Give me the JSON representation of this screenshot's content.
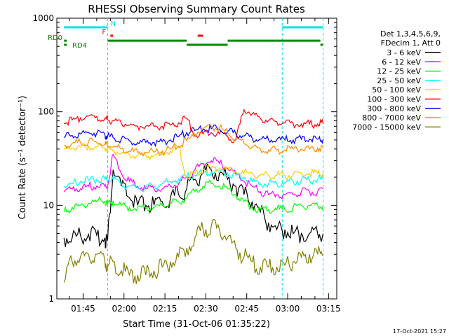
{
  "chart_data": {
    "type": "line",
    "title": "RHESSI Observing Summary Count Rates",
    "xlabel": "Start Time (31-Oct-06 01:35:22)",
    "ylabel": "Count Rate (s⁻¹ detector⁻¹)",
    "yscale": "log",
    "xlim": [
      "01:35:22",
      "03:18:00"
    ],
    "ylim": [
      1,
      1000
    ],
    "x_ticks": [
      "01:45",
      "02:00",
      "02:15",
      "02:30",
      "02:45",
      "03:00",
      "03:15"
    ],
    "y_ticks": [
      "1",
      "10",
      "100",
      "1000"
    ],
    "legend_header": [
      "Det 1,3,4,5,6,9,",
      "FDecim 1, Att 0"
    ],
    "legend_position": "right",
    "timestamp": "17-Oct-2021 15:27",
    "flags": [
      {
        "label": "N",
        "color": "#00e5ee",
        "intervals": [
          [
            "01:38",
            "01:54"
          ],
          [
            "02:58",
            "03:13"
          ]
        ],
        "level": 800
      },
      {
        "label": "F",
        "color": "#ff0000",
        "intervals": [
          [
            "01:55",
            "01:56"
          ],
          [
            "02:27",
            "02:29"
          ]
        ],
        "level": 650
      },
      {
        "label": "RD0",
        "color": "#008800",
        "intervals": [
          [
            "01:38",
            "01:39"
          ],
          [
            "01:54",
            "02:23"
          ],
          [
            "02:38",
            "03:12"
          ]
        ],
        "level": 575
      },
      {
        "label": "RD4",
        "color": "#008800",
        "intervals": [
          [
            "01:38",
            "01:39"
          ],
          [
            "02:23",
            "02:38"
          ],
          [
            "03:12",
            "03:13"
          ]
        ],
        "level": 520
      }
    ],
    "event_times": [
      "01:54",
      "02:58",
      "03:13"
    ],
    "x": [
      "01:38",
      "01:41",
      "01:44",
      "01:47",
      "01:50",
      "01:53",
      "01:54",
      "01:56",
      "01:59",
      "02:02",
      "02:05",
      "02:08",
      "02:11",
      "02:14",
      "02:17",
      "02:20",
      "02:23",
      "02:26",
      "02:29",
      "02:32",
      "02:35",
      "02:38",
      "02:41",
      "02:44",
      "02:47",
      "02:50",
      "02:53",
      "02:56",
      "02:59",
      "03:02",
      "03:05",
      "03:08",
      "03:11",
      "03:13"
    ],
    "series": [
      {
        "name": "3 - 6 keV",
        "color": "#000000",
        "values": [
          4.5,
          4.5,
          4.8,
          4.9,
          4.8,
          4.5,
          4.2,
          24,
          16,
          12,
          10,
          10,
          10,
          11,
          12,
          13,
          15,
          19,
          22,
          24,
          22,
          19,
          16,
          13,
          11,
          8.5,
          6.5,
          5.5,
          5.5,
          5.0,
          5.0,
          5.0,
          5.0,
          5.0
        ]
      },
      {
        "name": "6 - 12 keV",
        "color": "#ff00ff",
        "values": [
          14,
          15,
          15,
          16,
          16,
          16,
          16,
          35,
          22,
          18,
          16,
          15,
          15,
          15,
          16,
          17,
          20,
          24,
          28,
          30,
          28,
          25,
          22,
          18,
          16,
          14,
          13,
          13,
          13,
          13,
          14,
          14,
          14,
          15
        ]
      },
      {
        "name": "12 - 25 keV",
        "color": "#00ff00",
        "values": [
          8.5,
          9.5,
          10,
          10.5,
          11,
          11,
          10.5,
          11,
          10,
          9.5,
          9.5,
          9.5,
          9.5,
          10,
          10.5,
          11,
          12,
          14,
          16,
          17,
          16,
          15,
          13,
          11,
          9.5,
          9,
          9,
          9,
          9,
          9.5,
          10,
          10,
          10,
          10
        ]
      },
      {
        "name": "25 - 50 keV",
        "color": "#00ffff",
        "values": [
          16,
          17,
          18,
          18.5,
          19,
          19,
          18.5,
          19,
          17,
          16,
          15.5,
          15.5,
          16,
          17,
          18,
          19,
          20,
          21,
          22,
          23,
          23,
          22,
          21,
          20,
          18,
          17,
          17,
          17,
          17.5,
          18,
          18.5,
          18.5,
          19,
          19
        ]
      },
      {
        "name": "50 - 100 keV",
        "color": "#ffcc00",
        "values": [
          40,
          41,
          42,
          43,
          42,
          41,
          40,
          38,
          36,
          35,
          34,
          34,
          34,
          35,
          38,
          42,
          20,
          22,
          24,
          25,
          25,
          24,
          23,
          22,
          22,
          21,
          21,
          21,
          21,
          21,
          22,
          22,
          22,
          22
        ]
      },
      {
        "name": "100 - 300 keV",
        "color": "#ff0000",
        "values": [
          75,
          82,
          86,
          90,
          89,
          85,
          82,
          80,
          76,
          72,
          70,
          70,
          70,
          70,
          72,
          76,
          85,
          55,
          58,
          60,
          58,
          55,
          50,
          105,
          95,
          85,
          80,
          78,
          76,
          75,
          74,
          74,
          74,
          74
        ]
      },
      {
        "name": "300 - 800 keV",
        "color": "#0000ff",
        "values": [
          53,
          56,
          58,
          60,
          59,
          57,
          55,
          53,
          51,
          49,
          47,
          47,
          47,
          48,
          50,
          54,
          60,
          63,
          65,
          66,
          65,
          62,
          58,
          55,
          52,
          51,
          50,
          50,
          50,
          50,
          51,
          51,
          51,
          51
        ]
      },
      {
        "name": "800 - 7000 keV",
        "color": "#ff8c00",
        "values": [
          44,
          46,
          47,
          48,
          47,
          45,
          43,
          42,
          40,
          38,
          37,
          37,
          37,
          38,
          40,
          43,
          49,
          58,
          66,
          70,
          67,
          60,
          52,
          46,
          42,
          40,
          39,
          39,
          39,
          40,
          40,
          40,
          41,
          41
        ]
      },
      {
        "name": "7000 - 15000 keV",
        "color": "#808000",
        "values": [
          1.5,
          2.5,
          2.8,
          3.0,
          3.0,
          2.5,
          2.2,
          2.5,
          2.0,
          1.8,
          1.8,
          1.8,
          2.0,
          2.2,
          2.5,
          2.8,
          3.5,
          4.5,
          5.5,
          6.0,
          5.5,
          4.5,
          3.5,
          2.8,
          2.5,
          2.2,
          2.2,
          2.2,
          2.3,
          2.5,
          2.8,
          3.0,
          3.0,
          3.0
        ]
      }
    ]
  }
}
